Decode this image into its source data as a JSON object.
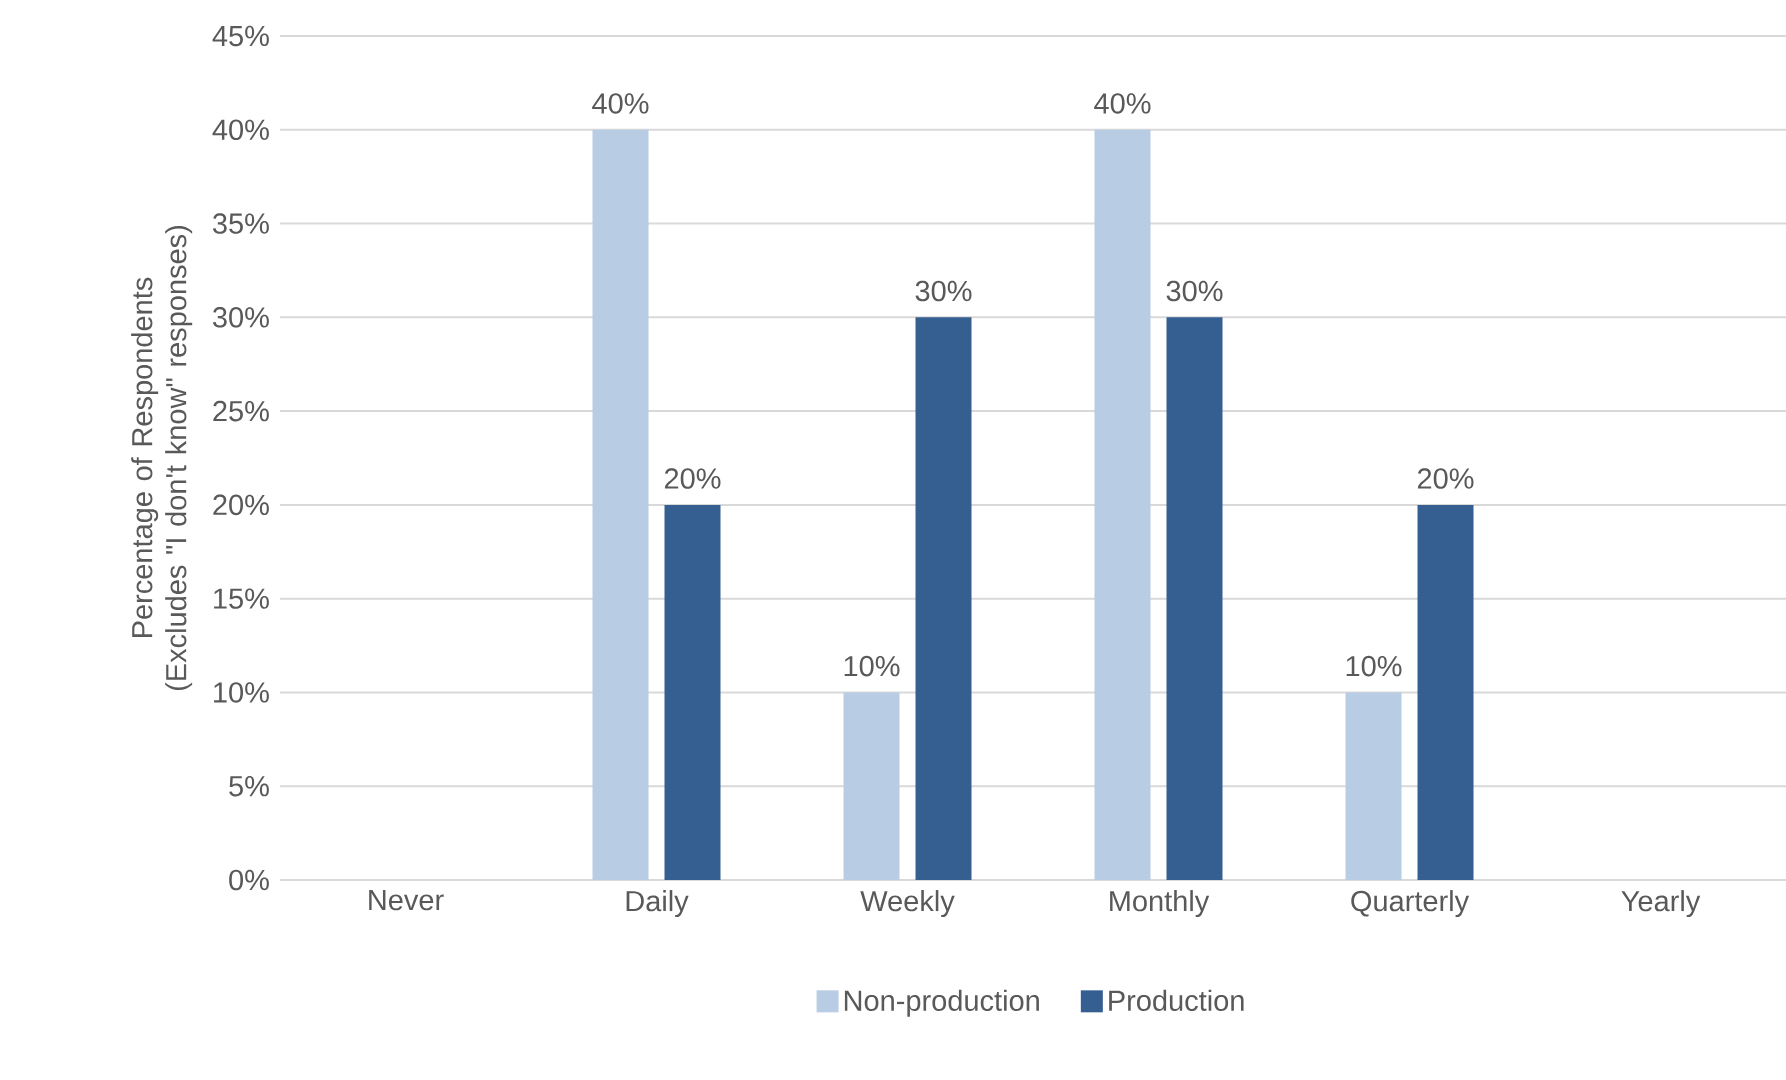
{
  "chart_data": {
    "type": "bar",
    "ylabel": "Percentage of Respondents (Excludes \"I don't know\" responses)",
    "categories": [
      "Never",
      "Daily",
      "Weekly",
      "Monthly",
      "Quarterly",
      "Yearly"
    ],
    "series": [
      {
        "name": "Non-production",
        "color": "#b8cce4",
        "values": [
          0,
          40,
          10,
          40,
          10,
          0
        ],
        "value_labels": [
          null,
          "40%",
          "10%",
          "40%",
          "10%",
          null
        ]
      },
      {
        "name": "Production",
        "color": "#355f91",
        "values": [
          0,
          20,
          30,
          30,
          20,
          0
        ],
        "value_labels": [
          null,
          "20%",
          "30%",
          "30%",
          "20%",
          null
        ]
      }
    ],
    "ylim": [
      0,
      45
    ],
    "yticks": [
      {
        "value": 0,
        "label": "0%"
      },
      {
        "value": 5,
        "label": "5%"
      },
      {
        "value": 10,
        "label": "10%"
      },
      {
        "value": 15,
        "label": "15%"
      },
      {
        "value": 20,
        "label": "20%"
      },
      {
        "value": 25,
        "label": "25%"
      },
      {
        "value": 30,
        "label": "30%"
      },
      {
        "value": 35,
        "label": "35%"
      },
      {
        "value": 40,
        "label": "40%"
      },
      {
        "value": 45,
        "label": "45%"
      }
    ],
    "grid": "y",
    "legend": "bottom"
  }
}
